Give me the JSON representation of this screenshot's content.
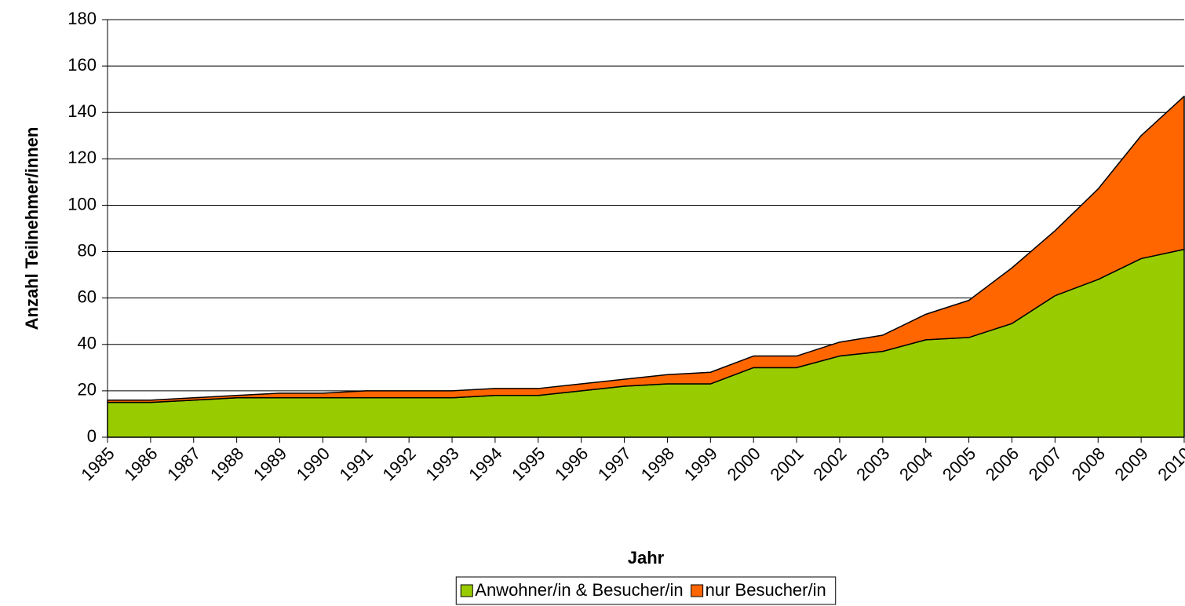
{
  "chart_data": {
    "type": "stacked_area",
    "xlabel": "Jahr",
    "ylabel": "Anzahl Teilnehmer/innen",
    "categories": [
      "1985",
      "1986",
      "1987",
      "1988",
      "1989",
      "1990",
      "1991",
      "1992",
      "1993",
      "1994",
      "1995",
      "1996",
      "1997",
      "1998",
      "1999",
      "2000",
      "2001",
      "2002",
      "2003",
      "2004",
      "2005",
      "2006",
      "2007",
      "2008",
      "2009",
      "2010"
    ],
    "series": [
      {
        "name": "Anwohner/in & Besucher/in",
        "color": "#99cc00",
        "values": [
          15,
          15,
          16,
          17,
          17,
          17,
          17,
          17,
          17,
          18,
          18,
          20,
          22,
          23,
          23,
          30,
          30,
          35,
          37,
          42,
          43,
          49,
          61,
          68,
          77,
          81
        ]
      },
      {
        "name": "nur Besucher/in",
        "color": "#ff6600",
        "values": [
          1,
          1,
          1,
          1,
          2,
          2,
          3,
          3,
          3,
          3,
          3,
          3,
          3,
          4,
          5,
          5,
          5,
          6,
          7,
          11,
          16,
          24,
          28,
          39,
          53,
          66
        ]
      }
    ],
    "ylim": [
      0,
      180
    ],
    "yticks": [
      0,
      20,
      40,
      60,
      80,
      100,
      120,
      140,
      160,
      180
    ],
    "grid": true,
    "legend": "bottom"
  }
}
